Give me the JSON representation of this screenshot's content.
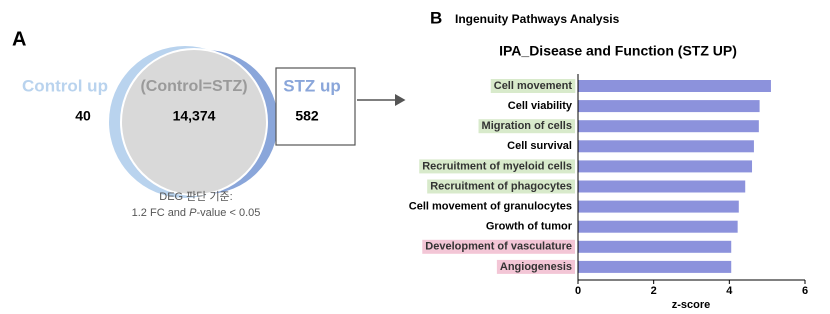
{
  "chart_data": [
    {
      "type": "venn",
      "panel": "A",
      "sets": [
        {
          "name": "Control up",
          "color": "#b9d3ee",
          "value": 40
        },
        {
          "name": "STZ up",
          "color": "#8aa6da",
          "value": 582
        }
      ],
      "intersection": {
        "name": "(Control=STZ)",
        "color": "#d9d9d9",
        "value": 14374,
        "value_label": "14,374"
      },
      "caption": [
        "DEG 판단 기준:",
        "1.2 FC  and ",
        "P",
        "-value < 0.05"
      ]
    },
    {
      "type": "bar",
      "orientation": "horizontal",
      "panel": "B",
      "heading": "Ingenuity Pathways Analysis",
      "title": "IPA_Disease and Function (STZ UP)",
      "categories": [
        "Cell movement",
        "Cell viability",
        "Migration of cells",
        "Cell survival",
        "Recruitment of myeloid cells",
        "Recruitment of phagocytes",
        "Cell movement of granulocytes",
        "Growth of tumor",
        "Development of vasculature",
        "Angiogenesis"
      ],
      "values": [
        5.1,
        4.8,
        4.78,
        4.65,
        4.6,
        4.42,
        4.25,
        4.22,
        4.05,
        4.05
      ],
      "color": "#8c92dc",
      "label_colors": [
        "#d8eacb",
        null,
        "#d8eacb",
        null,
        "#d8eacb",
        "#d8eacb",
        null,
        null,
        "#f3c6d6",
        "#f3c6d6"
      ],
      "xlim": [
        0,
        6
      ],
      "xticks": [
        0,
        2,
        4,
        6
      ],
      "xlabel": "z-score"
    }
  ]
}
